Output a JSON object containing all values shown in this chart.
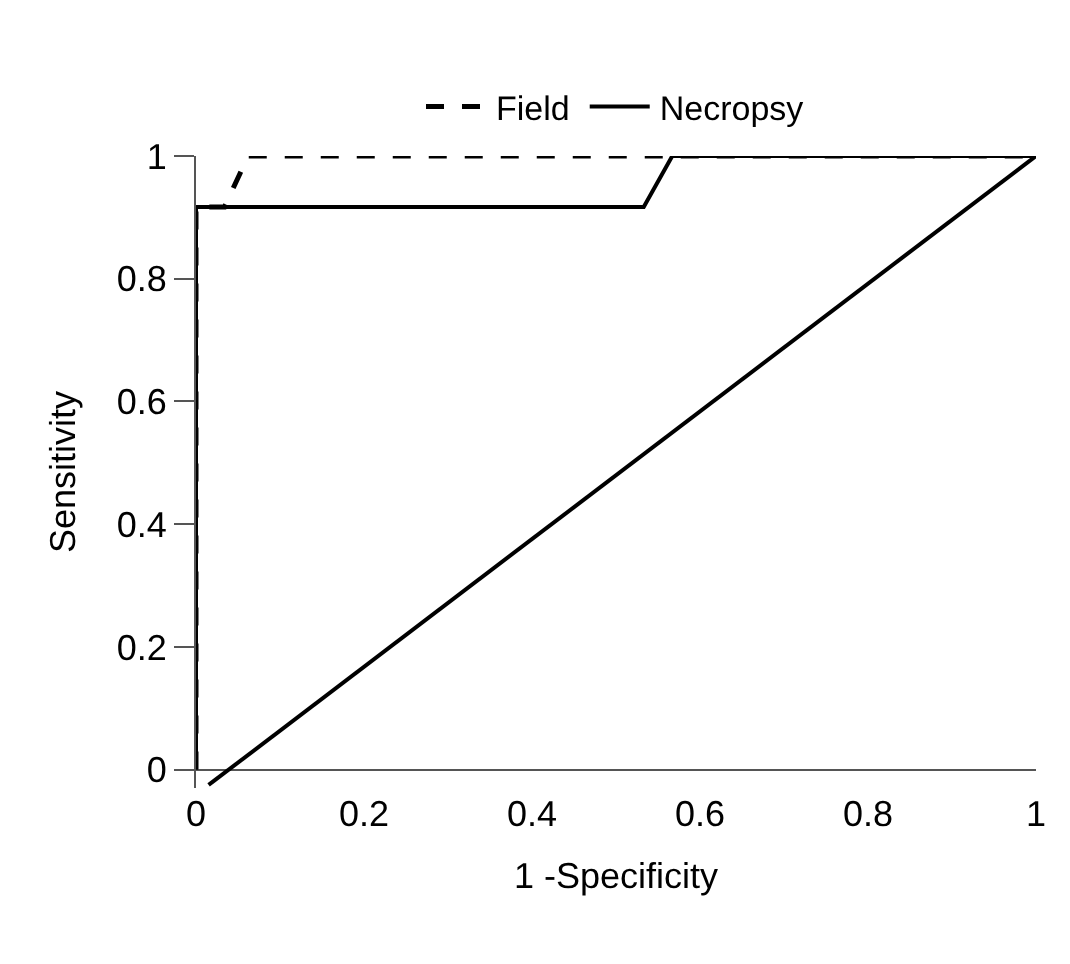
{
  "chart_data": {
    "type": "line",
    "xlabel": "1 -Specificity",
    "ylabel": "Sensitivity",
    "xlim": [
      0,
      1
    ],
    "ylim": [
      -0.03,
      1
    ],
    "xticks": [
      0,
      0.2,
      0.4,
      0.6,
      0.8,
      1
    ],
    "yticks": [
      0,
      0.2,
      0.4,
      0.6,
      0.8,
      1
    ],
    "legend": "top",
    "marker": "none",
    "series": [
      {
        "name": "Field",
        "color": "#000000",
        "line_style": "dashed",
        "x": [
          0,
          0,
          0.034,
          0.062,
          1
        ],
        "values": [
          0,
          0.917,
          0.917,
          1,
          1
        ]
      },
      {
        "name": "Necropsy",
        "color": "#000000",
        "line_style": "solid",
        "x": [
          0,
          0,
          0.533,
          0.567,
          1
        ],
        "values": [
          0,
          0.917,
          0.917,
          1,
          1
        ]
      },
      {
        "color": "#000000",
        "line_style": "solid",
        "x": [
          0.015,
          1
        ],
        "values": [
          -0.025,
          1
        ]
      }
    ]
  }
}
